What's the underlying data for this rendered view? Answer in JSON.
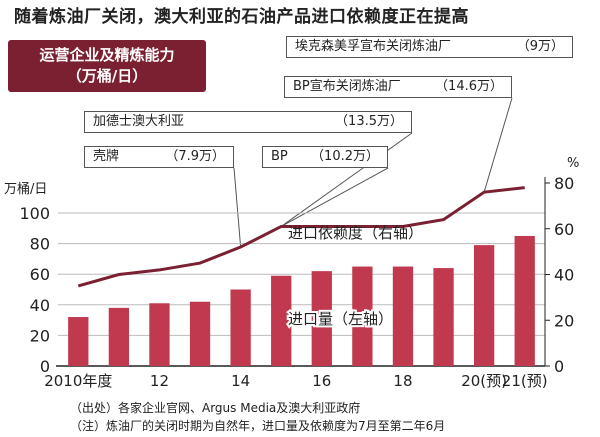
{
  "title": "随着炼油厂关闭，澳大利亚的石油产品进口依赖度正在提高",
  "badge": {
    "line1": "运营企业及精炼能力",
    "line2": "（万桶/日）"
  },
  "callouts": [
    {
      "name": "埃克森美孚宣布关闭炼油厂",
      "cap": "（9万）"
    },
    {
      "name": "BP宣布关闭炼油厂",
      "cap": "（14.6万）"
    },
    {
      "name": "加德士澳大利亚",
      "cap": "（13.5万）"
    },
    {
      "name": "壳牌",
      "cap": "（7.9万）"
    },
    {
      "name": "BP",
      "cap": "（10.2万）"
    }
  ],
  "chart_data": {
    "type": "bar",
    "categories": [
      "2010年度",
      "",
      "12",
      "",
      "14",
      "",
      "16",
      "",
      "18",
      "",
      "20(预)",
      "21(预)"
    ],
    "series": [
      {
        "name": "进口量（左轴）",
        "type": "bar",
        "axis": "left",
        "values": [
          32,
          38,
          41,
          42,
          50,
          59,
          62,
          65,
          65,
          64,
          79,
          85
        ]
      },
      {
        "name": "进口依赖度（右轴）",
        "type": "line",
        "axis": "right",
        "values": [
          35,
          40,
          42,
          45,
          52,
          61,
          61,
          61,
          61,
          64,
          76,
          78
        ]
      }
    ],
    "y_left": {
      "label": "万桶/日",
      "range": [
        0,
        100
      ],
      "ticks": [
        0,
        20,
        40,
        60,
        80,
        100
      ]
    },
    "y_right": {
      "label": "%",
      "range": [
        0,
        80
      ],
      "ticks": [
        0,
        20,
        40,
        60,
        80
      ]
    },
    "bar_color": "#c0394e",
    "line_color": "#7a2030"
  },
  "notes": {
    "source": "（出处）各家企业官网、Argus Media及澳大利亚政府",
    "note": "（注）炼油厂的关闭时期为自然年，进口量及依赖度为7月至第二年6月"
  }
}
